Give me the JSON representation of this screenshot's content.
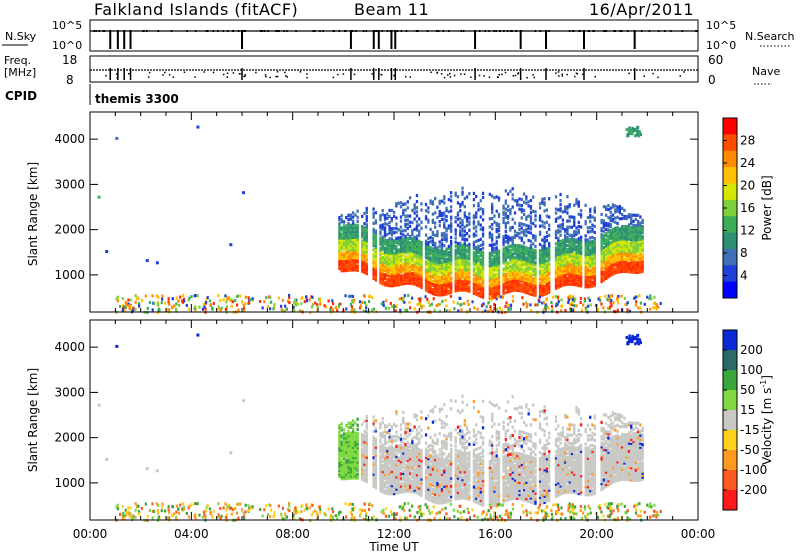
{
  "chart_data": [
    {
      "type": "heatmap",
      "header": {
        "site": "Falkland Islands (fitACF)",
        "beam": "Beam 11",
        "date": "16/Apr/2011"
      },
      "top_panels": {
        "nsky_label": "N.Sky",
        "nsearch_label": "N.Search",
        "freq_label_1": "Freq.",
        "freq_label_2": "[MHz]",
        "nave_label": "Nave",
        "cpid_label": "CPID",
        "cpid_value": "themis 3300",
        "nsky_ticks": [
          "10^5",
          "10^0"
        ],
        "nsearch_ticks": [
          "10^5",
          "10^0"
        ],
        "freq_ticks": [
          "18",
          "8"
        ],
        "nave_ticks": [
          "60",
          "0"
        ],
        "marker_hours": [
          0.8,
          1.1,
          1.35,
          1.6,
          6.0,
          10.3,
          11.2,
          11.4,
          11.9,
          12.05,
          15.2,
          17.0,
          18.0,
          19.5,
          21.5
        ]
      },
      "x_ticks": [
        "00:00",
        "04:00",
        "08:00",
        "12:00",
        "16:00",
        "20:00",
        "00:00"
      ],
      "x_range_hours": [
        0,
        24
      ],
      "xlabel": "Time UT",
      "y_ticks": [
        1000,
        2000,
        3000,
        4000
      ],
      "ylim": [
        180,
        4600
      ],
      "ylabel": "Slant Range [km]",
      "echo_region": {
        "t_start_hours": 9.8,
        "t_end_hours": 21.8,
        "base_range_km": 600,
        "top_range_km": 3100,
        "gap_hours": [
          10.6,
          11.0,
          11.3,
          13.1,
          14.3,
          15.0,
          15.6,
          16.2,
          17.6,
          18.2,
          19.4,
          20.0
        ]
      },
      "panels": [
        {
          "name": "power",
          "colorbar_label": "Power [dB]",
          "colorbar_ticks": [
            "28",
            "24",
            "20",
            "16",
            "12",
            "8",
            "4"
          ],
          "colorbar_colors": [
            "#ff0000",
            "#ff4d00",
            "#ff8c00",
            "#ffc000",
            "#d7e600",
            "#7fcf3a",
            "#3cae5a",
            "#2d8f73",
            "#3f6fb4",
            "#1e3fd8",
            "#0000ff"
          ]
        },
        {
          "name": "velocity",
          "colorbar_label": "Velocity [m s^-1]",
          "colorbar_ticks": [
            "200",
            "100",
            "50",
            "15",
            "-15",
            "-50",
            "-100",
            "-200"
          ],
          "colorbar_colors": [
            "#0a2ad8",
            "#2a6a6a",
            "#3aa53a",
            "#7fd840",
            "#c8c8c4",
            "#ffd21e",
            "#ff9a1e",
            "#ff5a1e",
            "#ff1a1a"
          ]
        }
      ]
    }
  ]
}
